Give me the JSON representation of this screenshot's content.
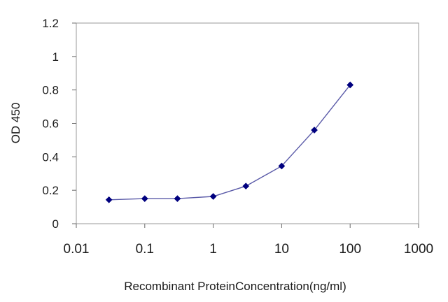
{
  "chart_data": {
    "type": "line",
    "x_scale": "log",
    "xlabel": "Recombinant ProteinConcentration(ng/ml)",
    "ylabel": "OD 450",
    "xlim": [
      0.01,
      1000
    ],
    "ylim": [
      0,
      1.2
    ],
    "x_ticks": [
      {
        "value": 0.01,
        "label": "0.01"
      },
      {
        "value": 0.1,
        "label": "0.1"
      },
      {
        "value": 1,
        "label": "1"
      },
      {
        "value": 10,
        "label": "10"
      },
      {
        "value": 100,
        "label": "100"
      },
      {
        "value": 1000,
        "label": "1000"
      }
    ],
    "y_ticks": [
      {
        "value": 0,
        "label": "0"
      },
      {
        "value": 0.2,
        "label": "0.2"
      },
      {
        "value": 0.4,
        "label": "0.4"
      },
      {
        "value": 0.6,
        "label": "0.6"
      },
      {
        "value": 0.8,
        "label": "0.8"
      },
      {
        "value": 1,
        "label": "1"
      },
      {
        "value": 1.2,
        "label": "1.2"
      }
    ],
    "grid": false,
    "legend": "none",
    "series": [
      {
        "color": "#00007f",
        "line_color": "#5a5aa8",
        "marker": "diamond",
        "points": [
          {
            "x": 0.03,
            "y": 0.143
          },
          {
            "x": 0.1,
            "y": 0.15
          },
          {
            "x": 0.3,
            "y": 0.15
          },
          {
            "x": 1,
            "y": 0.163
          },
          {
            "x": 3,
            "y": 0.225
          },
          {
            "x": 10,
            "y": 0.345
          },
          {
            "x": 30,
            "y": 0.56
          },
          {
            "x": 100,
            "y": 0.83
          }
        ]
      }
    ]
  }
}
